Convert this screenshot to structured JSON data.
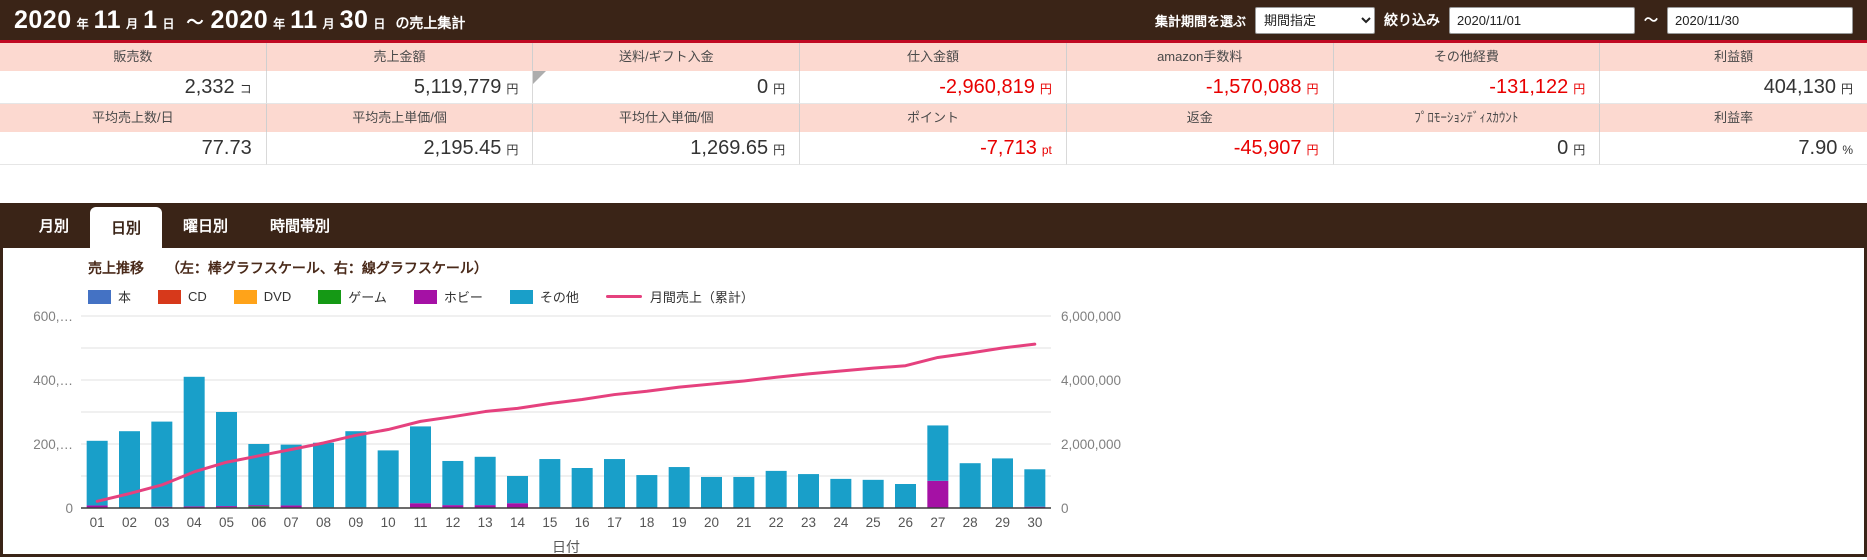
{
  "colors": {
    "brand_brown": "#3A2417",
    "header_pink": "#FCD9D0",
    "table_top_line": "#C00A23",
    "negative_red": "#E80000",
    "axis_text": "#808080",
    "grid": "#E2E2E2"
  },
  "header": {
    "title_parts": [
      {
        "text": "2020",
        "size": "big"
      },
      {
        "text": "年",
        "size": "small"
      },
      {
        "text": "11",
        "size": "big"
      },
      {
        "text": "月",
        "size": "small"
      },
      {
        "text": "1",
        "size": "big"
      },
      {
        "text": "日",
        "size": "small"
      },
      {
        "text": "～",
        "size": "mid"
      },
      {
        "text": "2020",
        "size": "big"
      },
      {
        "text": "年",
        "size": "small"
      },
      {
        "text": "11",
        "size": "big"
      },
      {
        "text": "月",
        "size": "small"
      },
      {
        "text": "30",
        "size": "big"
      },
      {
        "text": "日",
        "size": "small"
      },
      {
        "text": "の売上集計",
        "size": "suffix"
      }
    ],
    "period_label": "集計期間を選ぶ",
    "period_options": [
      "期間指定"
    ],
    "period_selected": "期間指定",
    "filter_label": "絞り込み",
    "date_from": "2020/11/01",
    "date_separator": "～",
    "date_to": "2020/11/30"
  },
  "summary": {
    "rows": [
      {
        "cells": [
          {
            "label": "販売数",
            "value": "2,332",
            "unit": "コ",
            "negative": false,
            "marker": false
          },
          {
            "label": "売上金額",
            "value": "5,119,779",
            "unit": "円",
            "negative": false,
            "marker": false
          },
          {
            "label": "送料/ギフト入金",
            "value": "0",
            "unit": "円",
            "negative": false,
            "marker": true
          },
          {
            "label": "仕入金額",
            "value": "-2,960,819",
            "unit": "円",
            "negative": true,
            "marker": false
          },
          {
            "label": "amazon手数料",
            "value": "-1,570,088",
            "unit": "円",
            "negative": true,
            "marker": false
          },
          {
            "label": "その他経費",
            "value": "-131,122",
            "unit": "円",
            "negative": true,
            "marker": false
          },
          {
            "label": "利益額",
            "value": "404,130",
            "unit": "円",
            "negative": false,
            "marker": false
          }
        ]
      },
      {
        "cells": [
          {
            "label": "平均売上数/日",
            "value": "77.73",
            "unit": "",
            "negative": false,
            "marker": false
          },
          {
            "label": "平均売上単価/個",
            "value": "2,195.45",
            "unit": "円",
            "negative": false,
            "marker": false
          },
          {
            "label": "平均仕入単価/個",
            "value": "1,269.65",
            "unit": "円",
            "negative": false,
            "marker": false
          },
          {
            "label": "ポイント",
            "value": "-7,713",
            "unit": "pt",
            "negative": true,
            "marker": false
          },
          {
            "label": "返金",
            "value": "-45,907",
            "unit": "円",
            "negative": true,
            "marker": false
          },
          {
            "label": "ﾌﾟﾛﾓｰｼｮﾝﾃﾞｨｽｶｳﾝﾄ",
            "value": "0",
            "unit": "円",
            "negative": false,
            "marker": false
          },
          {
            "label": "利益率",
            "value": "7.90",
            "unit": "%",
            "negative": false,
            "marker": false
          }
        ]
      }
    ]
  },
  "tabs": [
    {
      "label": "月別",
      "active": false
    },
    {
      "label": "日別",
      "active": true
    },
    {
      "label": "曜日別",
      "active": false
    },
    {
      "label": "時間帯別",
      "active": false
    }
  ],
  "chart": {
    "title": "売上推移",
    "subtitle": "（左：棒グラフスケール、右：線グラフスケール）"
  },
  "chart_data": {
    "type": "bar",
    "stacked": true,
    "title": "売上推移",
    "subtitle": "（左：棒グラフスケール、右：線グラフスケール）",
    "xlabel": "日付",
    "categories": [
      "01",
      "02",
      "03",
      "04",
      "05",
      "06",
      "07",
      "08",
      "09",
      "10",
      "11",
      "12",
      "13",
      "14",
      "15",
      "16",
      "17",
      "18",
      "19",
      "20",
      "21",
      "22",
      "23",
      "24",
      "25",
      "26",
      "27",
      "28",
      "29",
      "30"
    ],
    "series": [
      {
        "name": "本",
        "color": "#4472C4",
        "values": [
          0,
          0,
          0,
          0,
          0,
          0,
          0,
          0,
          0,
          0,
          0,
          0,
          0,
          0,
          0,
          0,
          1000,
          0,
          0,
          0,
          0,
          0,
          0,
          0,
          0,
          3000,
          0,
          0,
          0,
          0
        ]
      },
      {
        "name": "CD",
        "color": "#D7391B",
        "values": [
          0,
          0,
          0,
          0,
          0,
          0,
          0,
          2000,
          0,
          0,
          0,
          0,
          0,
          0,
          2000,
          0,
          0,
          0,
          1000,
          0,
          0,
          0,
          0,
          0,
          0,
          0,
          0,
          0,
          0,
          0
        ]
      },
      {
        "name": "DVD",
        "color": "#FFA319",
        "values": [
          0,
          1000,
          0,
          0,
          0,
          0,
          0,
          0,
          0,
          0,
          0,
          0,
          0,
          0,
          0,
          0,
          0,
          0,
          0,
          0,
          0,
          0,
          0,
          0,
          0,
          0,
          0,
          0,
          0,
          0
        ]
      },
      {
        "name": "ゲーム",
        "color": "#159915",
        "values": [
          0,
          0,
          0,
          0,
          2000,
          5000,
          0,
          0,
          0,
          0,
          0,
          0,
          0,
          0,
          0,
          0,
          0,
          0,
          0,
          0,
          0,
          0,
          0,
          0,
          0,
          0,
          0,
          0,
          0,
          0
        ]
      },
      {
        "name": "ホビー",
        "color": "#A511A5",
        "values": [
          8000,
          0,
          4000,
          5000,
          4000,
          4000,
          8000,
          0,
          2000,
          2000,
          15000,
          9000,
          9000,
          15000,
          0,
          0,
          0,
          0,
          0,
          0,
          0,
          2000,
          2000,
          0,
          0,
          0,
          85000,
          0,
          2000,
          4000
        ]
      },
      {
        "name": "その他",
        "color": "#199FC9",
        "values": [
          202000,
          239000,
          266000,
          405000,
          294000,
          191000,
          190000,
          202000,
          238000,
          178000,
          240000,
          138000,
          151000,
          85000,
          151000,
          125000,
          152000,
          103000,
          127000,
          97000,
          97000,
          114000,
          104000,
          91000,
          88000,
          72000,
          173000,
          140000,
          153000,
          117000
        ]
      }
    ],
    "line_series": {
      "name": "月間売上（累計）",
      "color": "#E5417E",
      "axis": "right",
      "values": [
        210000,
        450000,
        720000,
        1130000,
        1430000,
        1630000,
        1828000,
        2032000,
        2272000,
        2452000,
        2707000,
        2854000,
        3014000,
        3114000,
        3267000,
        3392000,
        3545000,
        3648000,
        3776000,
        3873000,
        3970000,
        4086000,
        4192000,
        4283000,
        4371000,
        4446000,
        4704000,
        4844000,
        4999000,
        5120000
      ]
    },
    "left_axis": {
      "max": 600000,
      "grid_step": 100000,
      "ticks": [
        {
          "v": 0,
          "label": "0"
        },
        {
          "v": 200000,
          "label": "200,…"
        },
        {
          "v": 400000,
          "label": "400,…"
        },
        {
          "v": 600000,
          "label": "600,…"
        }
      ]
    },
    "right_axis": {
      "max": 6000000,
      "ticks": [
        {
          "v": 0,
          "label": "0"
        },
        {
          "v": 2000000,
          "label": "2,000,000"
        },
        {
          "v": 4000000,
          "label": "4,000,000"
        },
        {
          "v": 6000000,
          "label": "6,000,000"
        }
      ]
    }
  }
}
